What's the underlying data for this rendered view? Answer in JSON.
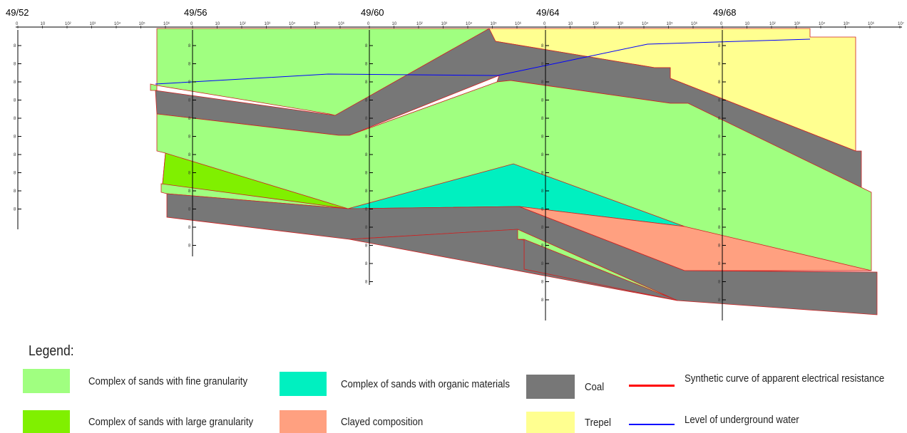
{
  "wells": [
    "49/52",
    "49/56",
    "49/60",
    "49/64",
    "49/68"
  ],
  "scale_ticks": [
    "0",
    "10",
    "10²",
    "10³",
    "10⁴",
    "10⁵",
    "10⁶",
    "10⁷"
  ],
  "colors": {
    "fine_sand": "#a0ff80",
    "large_sand": "#80f000",
    "organic_sand": "#00f0c0",
    "clay": "#ffa080",
    "coal": "#777777",
    "trepel": "#ffff90",
    "resistance_curve": "#ff0000",
    "water_level": "#0000ff"
  },
  "legend": {
    "title": "Legend:",
    "items": [
      {
        "key": "fine_sand",
        "label": "Complex of sands with fine granularity"
      },
      {
        "key": "large_sand",
        "label": "Complex of sands with large granularity"
      },
      {
        "key": "organic_sand",
        "label": "Complex of sands with organic materials"
      },
      {
        "key": "clay",
        "label": "Clayed composition"
      },
      {
        "key": "coal",
        "label": "Coal"
      },
      {
        "key": "trepel",
        "label": "Trepel"
      },
      {
        "key": "resistance_curve",
        "label": "Synthetic curve of apparent electrical resistance"
      },
      {
        "key": "water_level",
        "label": "Level of underground water"
      }
    ]
  }
}
